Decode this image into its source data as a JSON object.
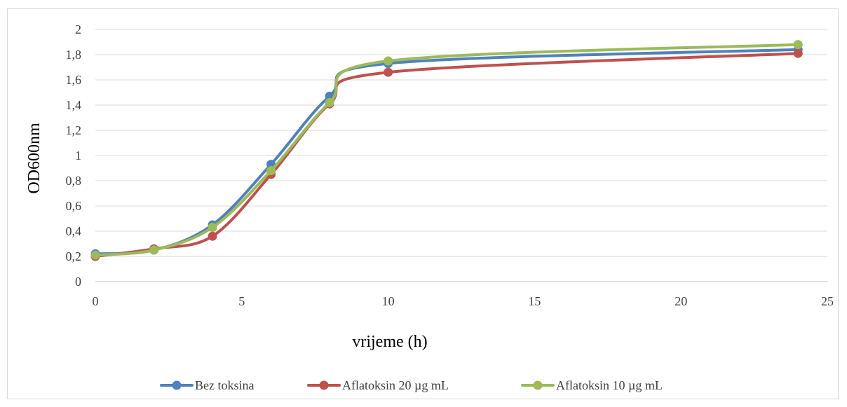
{
  "chart_data": {
    "type": "line",
    "smooth": true,
    "xlabel": "vrijeme (h)",
    "ylabel": "OD600nm",
    "xlim": [
      0,
      25
    ],
    "ylim": [
      0,
      2
    ],
    "x_ticks": [
      "0",
      "5",
      "10",
      "15",
      "20",
      "25"
    ],
    "y_ticks": [
      "0",
      "0,2",
      "0,4",
      "0,6",
      "0,8",
      "1",
      "1,2",
      "1,4",
      "1,6",
      "1,8",
      "2"
    ],
    "grid": "horizontal",
    "legend_position": "bottom",
    "series": [
      {
        "name": "Bez toksina",
        "color": "#4f81bd",
        "x": [
          0,
          2,
          4,
          6,
          8,
          10,
          24
        ],
        "y": [
          0.22,
          0.25,
          0.45,
          0.93,
          1.47,
          1.73,
          1.84
        ]
      },
      {
        "name": "Aflatoksin 20 µg mL",
        "color": "#c0504d",
        "x": [
          0,
          2,
          4,
          6,
          8,
          10,
          24
        ],
        "y": [
          0.2,
          0.26,
          0.36,
          0.85,
          1.41,
          1.66,
          1.81
        ]
      },
      {
        "name": "Aflatoksin 10 µg mL",
        "color": "#9bbb59",
        "x": [
          0,
          2,
          4,
          6,
          8,
          10,
          24
        ],
        "y": [
          0.21,
          0.25,
          0.43,
          0.88,
          1.42,
          1.75,
          1.88
        ]
      }
    ]
  }
}
